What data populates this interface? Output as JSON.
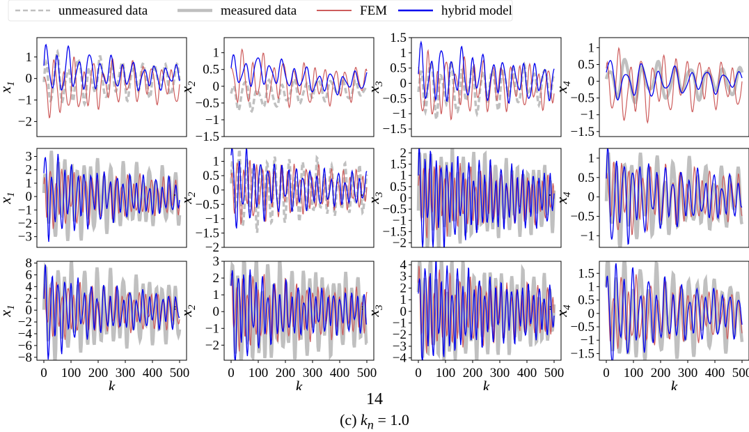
{
  "legend": {
    "items": [
      {
        "label": "unmeasured data",
        "color": "#bfbfbf",
        "style": "dashed"
      },
      {
        "label": "measured data",
        "color": "#bfbfbf",
        "style": "thick"
      },
      {
        "label": "FEM",
        "color": "#cd5c5c",
        "style": "solid"
      },
      {
        "label": "hybrid model",
        "color": "#0000ee",
        "style": "solid"
      }
    ]
  },
  "page_number": "14",
  "caption": {
    "prefix": "(c)",
    "symbol": "k",
    "subscript": "n",
    "rest": " = 1.0"
  },
  "chart_data": {
    "type": "line",
    "x_label": "k",
    "x_range": [
      0,
      500
    ],
    "x_ticks": [
      0,
      100,
      200,
      300,
      400,
      500
    ],
    "panels": [
      {
        "ylabel": "x",
        "sub": "1",
        "dots": 0,
        "ylim": [
          -2.7,
          1.9
        ],
        "yticks": [
          -2,
          -1,
          0,
          1
        ],
        "truth": "dashed",
        "hybrid": {
          "amp": 0.9,
          "decay": 0.004,
          "period": 40,
          "offset": 0.35,
          "phase": 0.2
        },
        "fem": {
          "amp": 1.0,
          "period": 36,
          "offset": -0.5,
          "phase": 1.1
        },
        "truth_series": {
          "amp": 0.9,
          "period": 40,
          "offset": -0.1,
          "phase": 0.3
        }
      },
      {
        "ylabel": "x",
        "sub": "2",
        "dots": 0,
        "ylim": [
          -1.5,
          1.45
        ],
        "yticks": [
          -1.5,
          -1.0,
          -0.5,
          0.0,
          0.5,
          1.0
        ],
        "truth": "dashed",
        "hybrid": {
          "amp": 0.35,
          "decay": 0.002,
          "period": 45,
          "offset": 0.45,
          "phase": 0.5
        },
        "fem": {
          "amp": 0.6,
          "period": 38,
          "offset": 0.2,
          "phase": 0.9
        },
        "truth_series": {
          "amp": 0.35,
          "period": 45,
          "offset": -0.3,
          "phase": 0.6
        }
      },
      {
        "ylabel": "x",
        "sub": "3",
        "dots": 0,
        "ylim": [
          -1.75,
          1.5
        ],
        "yticks": [
          -1.5,
          -1.0,
          -0.5,
          0.0,
          0.5,
          1.0,
          1.5
        ],
        "truth": "dashed",
        "hybrid": {
          "amp": 0.7,
          "decay": 0.002,
          "period": 38,
          "offset": 0.3,
          "phase": 0.1
        },
        "fem": {
          "amp": 0.8,
          "period": 34,
          "offset": -0.2,
          "phase": 1.4
        },
        "truth_series": {
          "amp": 0.7,
          "period": 38,
          "offset": -0.2,
          "phase": 0.2
        }
      },
      {
        "ylabel": "x",
        "sub": "4",
        "dots": 0,
        "ylim": [
          -1.65,
          1.3
        ],
        "yticks": [
          -1.5,
          -1.0,
          -0.5,
          0.0,
          0.5,
          1.0
        ],
        "truth": "thick",
        "hybrid": {
          "amp": 0.45,
          "decay": 0.003,
          "period": 60,
          "offset": 0.0,
          "phase": 0.3
        },
        "fem": {
          "amp": 0.8,
          "period": 42,
          "offset": -0.2,
          "phase": 1.0
        },
        "truth_series": {
          "amp": 0.5,
          "period": 60,
          "offset": 0.0,
          "phase": 0.35
        }
      },
      {
        "ylabel": "x",
        "sub": "1",
        "dots": 1,
        "ylim": [
          -3.8,
          3.6
        ],
        "yticks": [
          -3,
          -2,
          -1,
          0,
          1,
          2,
          3
        ],
        "truth": "thick",
        "hybrid": {
          "amp": 2.4,
          "decay": 0.005,
          "period": 24,
          "offset": 0.0,
          "phase": 0.2
        },
        "fem": {
          "amp": 1.6,
          "period": 22,
          "offset": 0.0,
          "phase": 1.2
        },
        "truth_series": {
          "amp": 2.4,
          "period": 24,
          "offset": 0.0,
          "phase": 0.25
        }
      },
      {
        "ylabel": "x",
        "sub": "2",
        "dots": 1,
        "ylim": [
          -2.0,
          1.45
        ],
        "yticks": [
          -2.0,
          -1.5,
          -1.0,
          -0.5,
          0.0,
          0.5,
          1.0
        ],
        "truth": "dashed",
        "hybrid": {
          "amp": 1.1,
          "decay": 0.006,
          "period": 26,
          "offset": 0.1,
          "phase": 0.4
        },
        "fem": {
          "amp": 0.8,
          "period": 23,
          "offset": 0.0,
          "phase": 1.3
        },
        "truth_series": {
          "amp": 1.0,
          "period": 26,
          "offset": 0.0,
          "phase": 0.45
        }
      },
      {
        "ylabel": "x",
        "sub": "3",
        "dots": 1,
        "ylim": [
          -2.2,
          2.2
        ],
        "yticks": [
          -2.0,
          -1.5,
          -1.0,
          -0.5,
          0.0,
          0.5,
          1.0,
          1.5,
          2.0
        ],
        "truth": "thick",
        "hybrid": {
          "amp": 1.7,
          "decay": 0.003,
          "period": 20,
          "offset": 0.0,
          "phase": 0.1
        },
        "fem": {
          "amp": 1.2,
          "period": 19,
          "offset": 0.0,
          "phase": 0.9
        },
        "truth_series": {
          "amp": 1.7,
          "period": 20,
          "offset": 0.0,
          "phase": 0.12
        }
      },
      {
        "ylabel": "x",
        "sub": "4",
        "dots": 1,
        "ylim": [
          -1.3,
          1.25
        ],
        "yticks": [
          -1.0,
          -0.5,
          0.0,
          0.5,
          1.0
        ],
        "truth": "thick",
        "hybrid": {
          "amp": 0.9,
          "decay": 0.004,
          "period": 30,
          "offset": 0.0,
          "phase": 0.3
        },
        "fem": {
          "amp": 0.7,
          "period": 27,
          "offset": 0.0,
          "phase": 1.2
        },
        "truth_series": {
          "amp": 0.9,
          "period": 30,
          "offset": 0.0,
          "phase": 0.32
        }
      },
      {
        "ylabel": "x",
        "sub": "1",
        "dots": 2,
        "ylim": [
          -8.5,
          8.3
        ],
        "yticks": [
          -8,
          -6,
          -4,
          -2,
          0,
          2,
          4,
          6,
          8
        ],
        "truth": "thick",
        "hybrid": {
          "amp": 6.0,
          "decay": 0.007,
          "period": 24,
          "offset": 0.0,
          "phase": 0.2
        },
        "fem": {
          "amp": 3.5,
          "period": 22,
          "offset": 0.0,
          "phase": 1.2
        },
        "truth_series": {
          "amp": 6.0,
          "period": 24,
          "offset": 0.0,
          "phase": 0.25
        }
      },
      {
        "ylabel": "x",
        "sub": "2",
        "dots": 2,
        "ylim": [
          -2.9,
          3.0
        ],
        "yticks": [
          -2,
          -1,
          0,
          1,
          2,
          3
        ],
        "truth": "thick",
        "hybrid": {
          "amp": 2.5,
          "decay": 0.008,
          "period": 22,
          "offset": 0.0,
          "phase": 0.4
        },
        "fem": {
          "amp": 1.6,
          "period": 20,
          "offset": 0.0,
          "phase": 1.3
        },
        "truth_series": {
          "amp": 2.5,
          "period": 22,
          "offset": 0.0,
          "phase": 0.45
        }
      },
      {
        "ylabel": "x",
        "sub": "3",
        "dots": 2,
        "ylim": [
          -4.2,
          4.3
        ],
        "yticks": [
          -4,
          -3,
          -2,
          -1,
          0,
          1,
          2,
          3,
          4
        ],
        "truth": "thick",
        "hybrid": {
          "amp": 3.6,
          "decay": 0.004,
          "period": 20,
          "offset": 0.0,
          "phase": 0.1
        },
        "fem": {
          "amp": 2.5,
          "period": 19,
          "offset": 0.0,
          "phase": 0.9
        },
        "truth_series": {
          "amp": 3.6,
          "period": 20,
          "offset": 0.0,
          "phase": 0.12
        }
      },
      {
        "ylabel": "x",
        "sub": "4",
        "dots": 2,
        "ylim": [
          -1.75,
          1.95
        ],
        "yticks": [
          -1.5,
          -1.0,
          -0.5,
          0.0,
          0.5,
          1.0,
          1.5
        ],
        "truth": "thick",
        "hybrid": {
          "amp": 1.5,
          "decay": 0.005,
          "period": 30,
          "offset": 0.0,
          "phase": 0.3
        },
        "fem": {
          "amp": 1.0,
          "period": 27,
          "offset": 0.0,
          "phase": 1.2
        },
        "truth_series": {
          "amp": 1.5,
          "period": 30,
          "offset": 0.0,
          "phase": 0.32
        }
      }
    ]
  }
}
